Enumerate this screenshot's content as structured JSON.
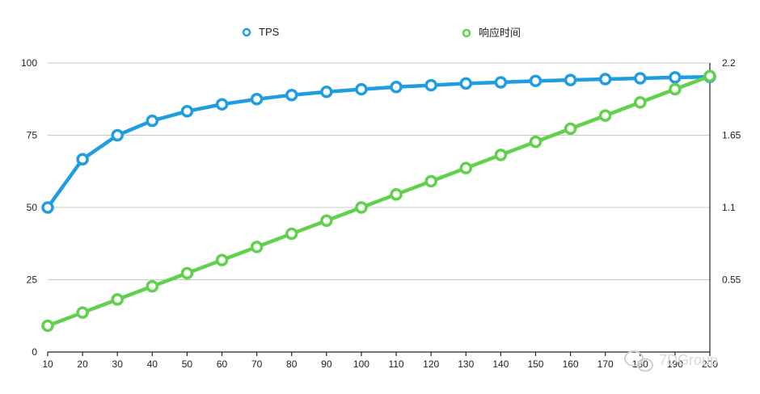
{
  "chart_data": {
    "type": "line",
    "x": [
      10,
      20,
      30,
      40,
      50,
      60,
      70,
      80,
      90,
      100,
      110,
      120,
      130,
      140,
      150,
      160,
      170,
      180,
      190,
      200
    ],
    "x_tick_labels": [
      "10",
      "20",
      "30",
      "40",
      "50",
      "60",
      "70",
      "80",
      "90",
      "100",
      "110",
      "120",
      "130",
      "140",
      "150",
      "160",
      "170",
      "180",
      "190",
      "200"
    ],
    "series": [
      {
        "name": "TPS",
        "axis": "left",
        "color": "#1f9de0",
        "values": [
          50,
          66.7,
          75,
          80,
          83.3,
          85.7,
          87.5,
          88.9,
          90,
          90.9,
          91.7,
          92.3,
          92.9,
          93.3,
          93.8,
          94.1,
          94.4,
          94.7,
          95,
          95.2
        ]
      },
      {
        "name": "响应时间",
        "axis": "right",
        "color": "#5fd14b",
        "values": [
          0.2,
          0.3,
          0.4,
          0.5,
          0.6,
          0.7,
          0.8,
          0.9,
          1.0,
          1.1,
          1.2,
          1.3,
          1.4,
          1.5,
          1.6,
          1.7,
          1.8,
          1.9,
          2.0,
          2.1
        ]
      }
    ],
    "y_left": {
      "ylim": [
        0,
        100
      ],
      "ticks": [
        "0",
        "25",
        "50",
        "75",
        "100"
      ]
    },
    "y_right": {
      "ylim": [
        0,
        2.2
      ],
      "ticks": [
        "0.55",
        "1.1",
        "1.65",
        "2.2"
      ]
    },
    "grid": true,
    "legend": "top",
    "title": "",
    "xlabel": "",
    "ylabel": ""
  },
  "watermark": {
    "text": "7DGroup",
    "icon": "wechat-icon"
  }
}
